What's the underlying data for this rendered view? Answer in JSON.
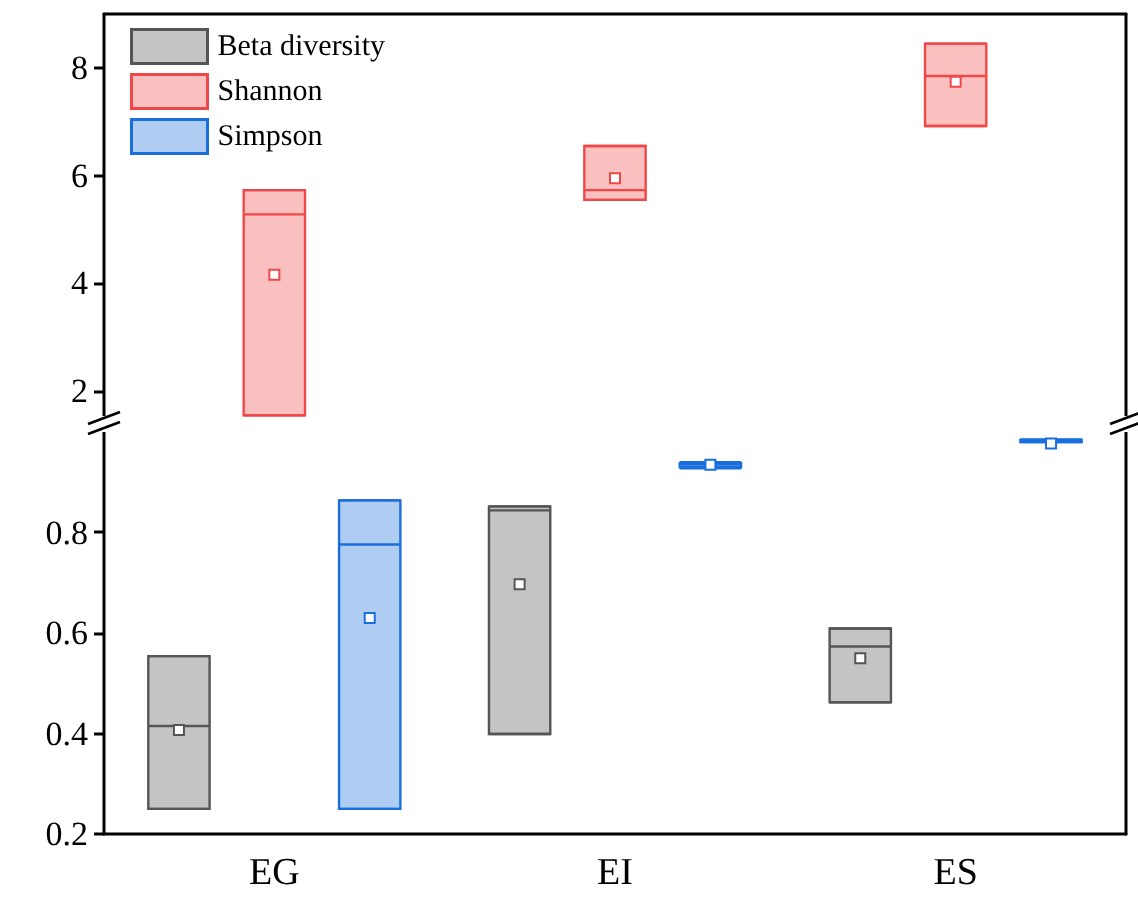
{
  "chart_data": [
    {
      "type": "box",
      "categories": [
        null,
        null,
        null
      ],
      "ylim": [
        1.5,
        9
      ],
      "yticks": [
        2,
        4,
        6,
        8
      ],
      "tick_labels": "y",
      "legend": "top left",
      "grid": false,
      "series": [
        {
          "name": "Beta diversity",
          "color": "#555555",
          "boxes": [
            null,
            null,
            null
          ]
        },
        {
          "name": "Shannon",
          "color": "#f04848",
          "boxes": [
            {
              "low": 1.55,
              "q1": 1.55,
              "median": 5.28,
              "q3": 5.73,
              "high": 5.73,
              "mean": 4.16
            },
            {
              "low": 5.55,
              "q1": 5.55,
              "median": 5.73,
              "q3": 6.55,
              "high": 6.55,
              "mean": 5.95
            },
            {
              "low": 6.92,
              "q1": 6.92,
              "median": 7.85,
              "q3": 8.45,
              "high": 8.45,
              "mean": 7.74
            }
          ]
        },
        {
          "name": "Simpson",
          "color": "#1a6fdc",
          "boxes": [
            null,
            null,
            null
          ]
        }
      ]
    },
    {
      "type": "box",
      "categories": [
        "EG",
        "EI",
        "ES"
      ],
      "ylim": [
        0.2,
        1.0
      ],
      "yticks": [
        0.2,
        0.4,
        0.6,
        0.8
      ],
      "grid": false,
      "series": [
        {
          "color": "#555555",
          "boxes": [
            {
              "low": 0.25,
              "q1": 0.25,
              "median": 0.415,
              "q3": 0.554,
              "high": 0.554,
              "mean": 0.407
            },
            {
              "low": 0.399,
              "q1": 0.399,
              "median": 0.844,
              "q3": 0.852,
              "high": 0.852,
              "mean": 0.697
            },
            {
              "low": 0.462,
              "q1": 0.462,
              "median": 0.573,
              "q3": 0.609,
              "high": 0.609,
              "mean": 0.55
            }
          ]
        },
        {
          "color": "#1a6fdc",
          "boxes": [
            {
              "low": 0.25,
              "q1": 0.25,
              "median": 0.776,
              "q3": 0.864,
              "high": 0.864,
              "mean": 0.63
            },
            {
              "low": 0.928,
              "q1": 0.93,
              "median": 0.935,
              "q3": 0.938,
              "high": 0.94,
              "mean": 0.935
            },
            {
              "low": 0.98,
              "q1": 0.982,
              "median": 0.983,
              "q3": 0.984,
              "high": 0.985,
              "mean": 0.977
            }
          ]
        }
      ]
    }
  ]
}
